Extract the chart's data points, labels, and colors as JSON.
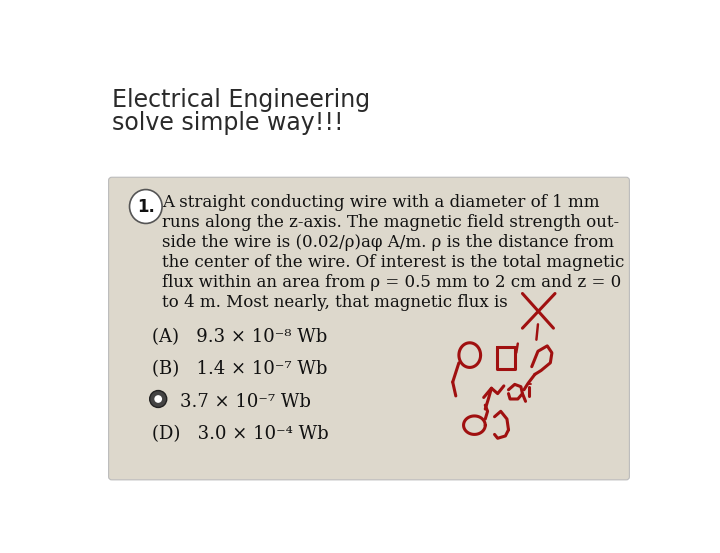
{
  "title_line1": "Electrical Engineering",
  "title_line2": "solve simple way!!!",
  "title_fontsize": 17,
  "title_color": "#2a2a2a",
  "bg_color": "#ffffff",
  "card_color": "#ddd8cc",
  "card_edge_color": "#bbbbbb",
  "problem_text_lines": [
    "A straight conducting wire with a diameter of 1 mm",
    "runs along the z-axis. The magnetic field strength out-",
    "side the wire is (0.02/ρ)aφ A/m. ρ is the distance from",
    "the center of the wire. Of interest is the total magnetic",
    "flux within an area from ρ = 0.5 mm to 2 cm and z = 0",
    "to 4 m. Most nearly, that magnetic flux is"
  ],
  "options_A": "(A)   9.3 × 10⁻⁸ Wb",
  "options_B": "(B)   1.4 × 10⁻⁷ Wb",
  "options_C": "3.7 × 10⁻⁷ Wb",
  "options_D": "(D)   3.0 × 10⁻⁴ Wb",
  "text_color": "#111111",
  "problem_fontsize": 12.0,
  "option_fontsize": 13.0,
  "annotation_color": "#a01010"
}
